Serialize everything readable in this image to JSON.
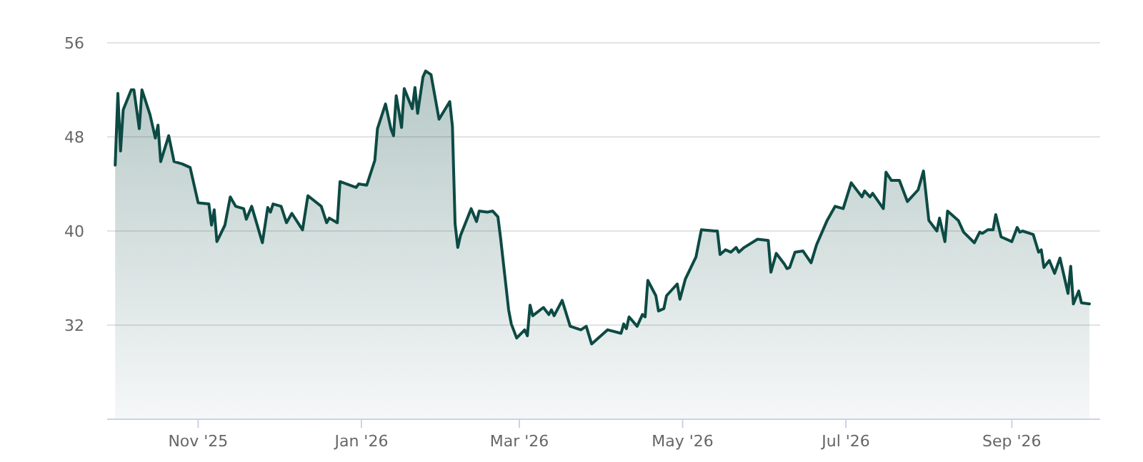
{
  "chart_data": {
    "type": "area",
    "grid": "y",
    "ylim": [
      24,
      56
    ],
    "yticks": [
      32,
      40,
      48,
      56
    ],
    "xlim": [
      "2025-09-28",
      "2026-10-04"
    ],
    "xticks": [
      {
        "value": "2025-11-01",
        "label": "Nov '25"
      },
      {
        "value": "2026-01-01",
        "label": "Jan '26"
      },
      {
        "value": "2026-03-01",
        "label": "Mar '26"
      },
      {
        "value": "2026-05-01",
        "label": "May '26"
      },
      {
        "value": "2026-07-01",
        "label": "Jul '26"
      },
      {
        "value": "2026-09-01",
        "label": "Sep '26"
      }
    ],
    "x": [
      "2025-10-01",
      "2025-10-02",
      "2025-10-03",
      "2025-10-04",
      "2025-10-07",
      "2025-10-08",
      "2025-10-10",
      "2025-10-11",
      "2025-10-14",
      "2025-10-16",
      "2025-10-17",
      "2025-10-18",
      "2025-10-21",
      "2025-10-23",
      "2025-10-26",
      "2025-10-29",
      "2025-11-01",
      "2025-11-05",
      "2025-11-06",
      "2025-11-07",
      "2025-11-08",
      "2025-11-11",
      "2025-11-13",
      "2025-11-15",
      "2025-11-18",
      "2025-11-19",
      "2025-11-21",
      "2025-11-25",
      "2025-11-27",
      "2025-11-28",
      "2025-11-29",
      "2025-12-02",
      "2025-12-04",
      "2025-12-06",
      "2025-12-10",
      "2025-12-12",
      "2025-12-17",
      "2025-12-19",
      "2025-12-20",
      "2025-12-23",
      "2025-12-24",
      "2025-12-30",
      "2025-12-31",
      "2026-01-03",
      "2026-01-06",
      "2026-01-07",
      "2026-01-08",
      "2026-01-10",
      "2026-01-12",
      "2026-01-13",
      "2026-01-14",
      "2026-01-16",
      "2026-01-17",
      "2026-01-20",
      "2026-01-21",
      "2026-01-22",
      "2026-01-24",
      "2026-01-25",
      "2026-01-27",
      "2026-01-30",
      "2026-02-03",
      "2026-02-04",
      "2026-02-05",
      "2026-02-06",
      "2026-02-07",
      "2026-02-11",
      "2026-02-13",
      "2026-02-14",
      "2026-02-17",
      "2026-02-19",
      "2026-02-21",
      "2026-02-22",
      "2026-02-25",
      "2026-02-26",
      "2026-02-28",
      "2026-03-03",
      "2026-03-04",
      "2026-03-05",
      "2026-03-06",
      "2026-03-10",
      "2026-03-12",
      "2026-03-13",
      "2026-03-14",
      "2026-03-17",
      "2026-03-20",
      "2026-03-24",
      "2026-03-26",
      "2026-03-28",
      "2026-04-03",
      "2026-04-08",
      "2026-04-09",
      "2026-04-10",
      "2026-04-11",
      "2026-04-14",
      "2026-04-16",
      "2026-04-17",
      "2026-04-18",
      "2026-04-21",
      "2026-04-22",
      "2026-04-24",
      "2026-04-25",
      "2026-04-29",
      "2026-04-30",
      "2026-05-02",
      "2026-05-06",
      "2026-05-08",
      "2026-05-13",
      "2026-05-14",
      "2026-05-15",
      "2026-05-17",
      "2026-05-19",
      "2026-05-21",
      "2026-05-22",
      "2026-05-24",
      "2026-05-29",
      "2026-06-02",
      "2026-06-03",
      "2026-06-05",
      "2026-06-08",
      "2026-06-09",
      "2026-06-10",
      "2026-06-12",
      "2026-06-15",
      "2026-06-18",
      "2026-06-20",
      "2026-06-24",
      "2026-06-27",
      "2026-06-30",
      "2026-07-03",
      "2026-07-07",
      "2026-07-08",
      "2026-07-10",
      "2026-07-11",
      "2026-07-15",
      "2026-07-16",
      "2026-07-18",
      "2026-07-21",
      "2026-07-24",
      "2026-07-28",
      "2026-07-30",
      "2026-08-01",
      "2026-08-04",
      "2026-08-05",
      "2026-08-07",
      "2026-08-08",
      "2026-08-12",
      "2026-08-14",
      "2026-08-18",
      "2026-08-20",
      "2026-08-21",
      "2026-08-23",
      "2026-08-25",
      "2026-08-26",
      "2026-08-28",
      "2026-09-01",
      "2026-09-03",
      "2026-09-04",
      "2026-09-05",
      "2026-09-09",
      "2026-09-11",
      "2026-09-12",
      "2026-09-13",
      "2026-09-15",
      "2026-09-17",
      "2026-09-19",
      "2026-09-22",
      "2026-09-23",
      "2026-09-24",
      "2026-09-26",
      "2026-09-27",
      "2026-09-30"
    ],
    "series": [
      {
        "color": "#0d4a44",
        "values": [
          45.6,
          51.7,
          46.8,
          50.3,
          52.0,
          52.0,
          48.7,
          52.0,
          49.9,
          47.9,
          49.0,
          45.9,
          48.1,
          45.9,
          45.7,
          45.4,
          42.4,
          42.3,
          40.5,
          41.8,
          39.1,
          40.5,
          42.9,
          42.1,
          41.9,
          41.0,
          42.1,
          39.0,
          42.0,
          41.6,
          42.3,
          42.1,
          40.7,
          41.5,
          40.1,
          43.0,
          42.1,
          40.7,
          41.1,
          40.7,
          44.2,
          43.7,
          44.0,
          43.9,
          46.0,
          48.7,
          49.4,
          50.8,
          48.7,
          48.1,
          51.5,
          48.8,
          52.1,
          50.4,
          52.2,
          50.0,
          53.1,
          53.6,
          53.3,
          49.5,
          51.0,
          48.9,
          40.6,
          38.6,
          39.6,
          41.9,
          40.8,
          41.7,
          41.6,
          41.7,
          41.2,
          39.4,
          33.3,
          32.1,
          30.9,
          31.6,
          31.1,
          33.7,
          32.8,
          33.5,
          32.9,
          33.3,
          32.8,
          34.1,
          31.9,
          31.6,
          31.9,
          30.4,
          31.6,
          31.3,
          32.1,
          31.7,
          32.7,
          31.9,
          32.9,
          32.7,
          35.8,
          34.5,
          33.2,
          33.4,
          34.5,
          35.5,
          34.2,
          35.9,
          37.8,
          40.1,
          40.0,
          40.0,
          38.0,
          38.4,
          38.2,
          38.6,
          38.2,
          38.6,
          39.3,
          39.2,
          36.5,
          38.1,
          37.2,
          36.8,
          36.9,
          38.2,
          38.3,
          37.3,
          38.8,
          40.9,
          42.1,
          41.9,
          44.1,
          42.9,
          43.4,
          42.9,
          43.2,
          41.9,
          45.0,
          44.3,
          44.3,
          42.5,
          43.5,
          45.1,
          40.9,
          40.0,
          41.1,
          39.1,
          41.7,
          40.9,
          39.9,
          39.0,
          39.9,
          39.8,
          40.1,
          40.1,
          41.4,
          39.5,
          39.1,
          40.3,
          39.9,
          40.0,
          39.7,
          38.2,
          38.4,
          36.9,
          37.5,
          36.4,
          37.7,
          34.7,
          37.0,
          33.8,
          34.9,
          33.9,
          33.8
        ]
      }
    ]
  }
}
